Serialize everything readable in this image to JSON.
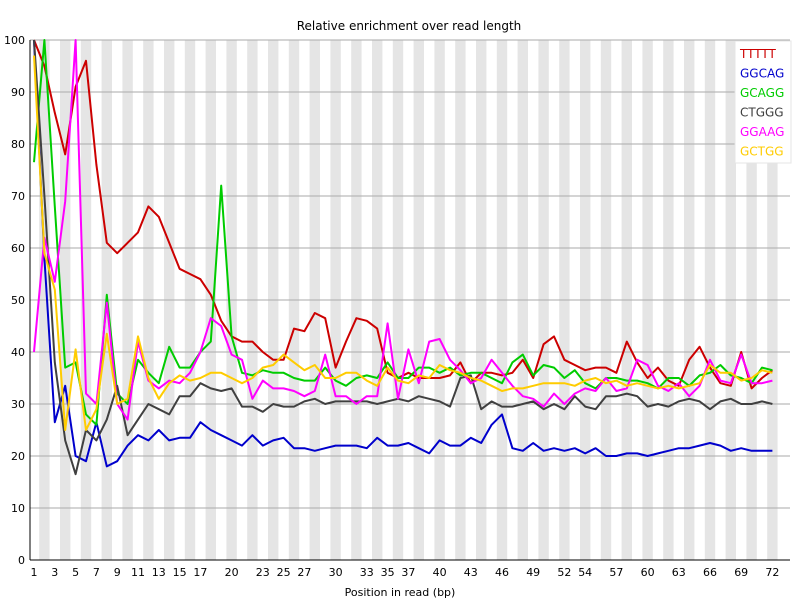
{
  "chart_data": {
    "type": "line",
    "title": "Relative enrichment over read length",
    "xlabel": "Position in read (bp)",
    "ylabel": "",
    "ylim": [
      0,
      100
    ],
    "yticks": [
      0,
      10,
      20,
      30,
      40,
      50,
      60,
      70,
      80,
      90,
      100
    ],
    "x": [
      "1",
      "2",
      "3",
      "4",
      "5",
      "6",
      "7",
      "8",
      "9",
      "10",
      "11",
      "12",
      "13",
      "14",
      "15",
      "16",
      "17",
      "18",
      "19",
      "20",
      "21",
      "22",
      "23",
      "24",
      "25",
      "26",
      "27",
      "28",
      "29",
      "30",
      "31",
      "32",
      "33",
      "34",
      "35",
      "36",
      "37",
      "38",
      "39",
      "40",
      "41",
      "42",
      "43",
      "44",
      "45",
      "46",
      "47",
      "48",
      "49",
      "50",
      "51",
      "52",
      "53",
      "54",
      "55",
      "56",
      "57",
      "58",
      "59",
      "60",
      "61",
      "62",
      "63",
      "64",
      "65",
      "66",
      "67",
      "68",
      "69",
      "70",
      "71",
      "72"
    ],
    "x_tick_labels": [
      "1",
      "3",
      "5",
      "7",
      "9",
      "11",
      "13",
      "15",
      "17",
      "20",
      "23",
      "25",
      "27",
      "30",
      "33",
      "35",
      "37",
      "40",
      "43",
      "46",
      "49",
      "52",
      "54",
      "57",
      "60",
      "63",
      "66",
      "69",
      "72"
    ],
    "grid": true,
    "legend_position": "top-right",
    "series": [
      {
        "name": "TTTTT",
        "color": "#cc0000",
        "values": [
          100,
          95,
          86,
          78,
          91,
          96,
          76,
          61,
          59,
          61,
          63,
          68,
          66,
          61,
          56,
          55,
          54,
          51,
          46,
          43,
          42,
          42,
          40,
          38.5,
          38.5,
          44.5,
          44,
          47.5,
          46.5,
          37,
          42,
          46.5,
          46,
          44.5,
          36,
          35,
          36,
          35,
          35,
          35,
          35.5,
          38,
          34,
          36,
          36,
          35.5,
          36,
          38.5,
          35,
          41.5,
          43,
          38.5,
          37.5,
          36.5,
          37,
          37,
          36,
          42,
          38,
          35,
          37,
          34.5,
          33.5,
          38.5,
          41,
          37,
          34,
          33.5,
          40,
          33,
          35,
          36.5
        ]
      },
      {
        "name": "GGCAG",
        "color": "#0000cc",
        "values": [
          100,
          58,
          26.5,
          33.5,
          20,
          19,
          26.5,
          18,
          19,
          22,
          24,
          23,
          25,
          23,
          23.5,
          23.5,
          26.5,
          25,
          24,
          23,
          22,
          24,
          22,
          23,
          23.5,
          21.5,
          21.5,
          21,
          21.5,
          22,
          22,
          22,
          21.5,
          23.5,
          22,
          22,
          22.5,
          21.5,
          20.5,
          23,
          22,
          22,
          23.5,
          22.5,
          26,
          28,
          21.5,
          21,
          22.5,
          21,
          21.5,
          21,
          21.5,
          20.5,
          21.5,
          20,
          20,
          20.5,
          20.5,
          20,
          20.5,
          21,
          21.5,
          21.5,
          22,
          22.5,
          22,
          21,
          21.5,
          21,
          21,
          21
        ]
      },
      {
        "name": "GCAGG",
        "color": "#00cc00",
        "values": [
          76.5,
          100,
          68,
          37,
          38,
          28,
          26,
          51,
          32,
          30,
          38.5,
          36,
          34,
          41,
          37,
          37,
          40,
          42,
          72,
          43,
          36,
          35.5,
          36.5,
          36,
          36,
          35,
          34.5,
          34.5,
          37,
          34.5,
          33.5,
          35,
          35.5,
          35,
          38,
          35,
          35,
          37,
          37,
          36,
          37,
          35.5,
          36,
          36,
          35,
          34,
          38,
          39.5,
          35.5,
          37.5,
          37,
          35,
          36.5,
          34,
          33,
          35,
          35,
          34.5,
          34.5,
          34,
          33,
          35,
          35,
          33.5,
          35.5,
          36,
          37.5,
          35.5,
          35,
          34,
          37,
          36.5
        ]
      },
      {
        "name": "CTGGG",
        "color": "#404040",
        "values": [
          100,
          70,
          38,
          23,
          16.5,
          25,
          23,
          27,
          33.5,
          24,
          27,
          30,
          29,
          28,
          31.5,
          31.5,
          34,
          33,
          32.5,
          33,
          29.5,
          29.5,
          28.5,
          30,
          29.5,
          29.5,
          30.5,
          31,
          30,
          30.5,
          30.5,
          30.5,
          30.5,
          30,
          30.5,
          31,
          30.5,
          31.5,
          31,
          30.5,
          29.5,
          35,
          35.5,
          29,
          30.5,
          29.5,
          29.5,
          30,
          30.5,
          29,
          30,
          29,
          31.5,
          29.5,
          29,
          31.5,
          31.5,
          32,
          31.5,
          29.5,
          30,
          29.5,
          30.5,
          31,
          30.5,
          29,
          30.5,
          31,
          30,
          30,
          30.5,
          30
        ]
      },
      {
        "name": "GGAAG",
        "color": "#ff00ff",
        "values": [
          40,
          62,
          53.5,
          69,
          100,
          32,
          30,
          49.5,
          30,
          27,
          42,
          34.5,
          33,
          34.5,
          34,
          36,
          40,
          46.5,
          45,
          39.5,
          38.5,
          31,
          34.5,
          33,
          33,
          32.5,
          31.5,
          32.5,
          39.5,
          31.5,
          31.5,
          30,
          31.5,
          31.5,
          45.5,
          31,
          40.5,
          34,
          42,
          42.5,
          38.5,
          36.5,
          34,
          35,
          38.5,
          36,
          33.5,
          31.5,
          31,
          29.5,
          32,
          30,
          32,
          33,
          32.5,
          35,
          32.5,
          33,
          38.5,
          37.5,
          33.5,
          32.5,
          34,
          31.5,
          33.5,
          38.5,
          34.5,
          34,
          39.5,
          34,
          34,
          34.5
        ]
      },
      {
        "name": "GCTGG",
        "color": "#ffcc00",
        "values": [
          97,
          59,
          52,
          25,
          40.5,
          25,
          29,
          43.5,
          30,
          31,
          43,
          35,
          31,
          34,
          35.5,
          34.5,
          35,
          36,
          36,
          35,
          34,
          35,
          37,
          37.5,
          39.5,
          38,
          36.5,
          37.5,
          35,
          35,
          36,
          36,
          34.5,
          33.5,
          37,
          34.5,
          34,
          35.5,
          35,
          37.5,
          36.5,
          36,
          35,
          34.5,
          33.5,
          32.5,
          33,
          33,
          33.5,
          34,
          34,
          34,
          33.5,
          34.5,
          35,
          34,
          34.5,
          33.5,
          34,
          33.5,
          33,
          33.5,
          33,
          33.5,
          34,
          37.5,
          36,
          36,
          34.5,
          35,
          36.5,
          36
        ]
      }
    ]
  }
}
